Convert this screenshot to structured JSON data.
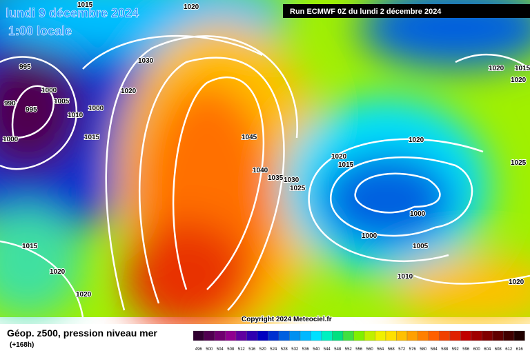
{
  "header": {
    "title": "lundi 9 décembre 2024",
    "subtitle": "1:00 locale",
    "run": "Run ECMWF 0Z du lundi 2 décembre 2024"
  },
  "map": {
    "isobar_labels": [
      "1015",
      "1020",
      "995",
      "1000",
      "990",
      "995",
      "1005",
      "1010",
      "1000",
      "1000",
      "1015",
      "1030",
      "1020",
      "1045",
      "1040",
      "1035",
      "1030",
      "1025",
      "1020",
      "1015",
      "1020",
      "1020",
      "1015",
      "1020",
      "1025",
      "1000",
      "1000",
      "1005",
      "1010",
      "1015",
      "1020",
      "1020",
      "1020"
    ],
    "copyright": "Copyright 2024 Meteociel.fr"
  },
  "footer": {
    "title": "Géop. z500, pression niveau mer",
    "lead": "(+168h)",
    "scale": {
      "values": [
        496,
        500,
        504,
        508,
        512,
        516,
        520,
        524,
        528,
        532,
        536,
        540,
        544,
        548,
        552,
        556,
        560,
        564,
        568,
        572,
        576,
        580,
        584,
        588,
        592,
        596,
        600,
        604,
        608,
        612,
        616
      ],
      "colors": [
        "#300030",
        "#500050",
        "#700070",
        "#900090",
        "#6000a0",
        "#3000b0",
        "#0000c0",
        "#0030d0",
        "#0060e0",
        "#0090f0",
        "#00b8ff",
        "#00e0ff",
        "#00f0c0",
        "#00e080",
        "#40e040",
        "#80f000",
        "#c0f000",
        "#f0f000",
        "#ffe000",
        "#ffc000",
        "#ffa000",
        "#ff8000",
        "#ff6000",
        "#f04000",
        "#e02000",
        "#c00000",
        "#a00000",
        "#800000",
        "#600000",
        "#400000",
        "#200000"
      ]
    }
  }
}
